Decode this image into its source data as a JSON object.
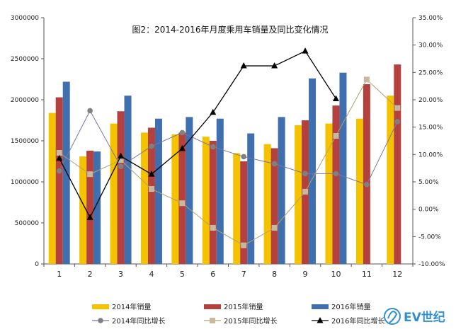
{
  "chart_data": {
    "type": "bar+line",
    "title": "图2：2014-2016年月度乘用车销量及同比变化情况",
    "categories": [
      "1",
      "2",
      "3",
      "4",
      "5",
      "6",
      "7",
      "8",
      "9",
      "10",
      "11",
      "12"
    ],
    "y_left": {
      "min": 0,
      "max": 3000000,
      "step": 500000,
      "ticks": [
        "0",
        "500000",
        "1000000",
        "1500000",
        "2000000",
        "2500000",
        "3000000"
      ]
    },
    "y_right": {
      "min": -10,
      "max": 35,
      "step": 5,
      "ticks": [
        "-10.00%",
        "-5.00%",
        "0.00%",
        "5.00%",
        "10.00%",
        "15.00%",
        "20.00%",
        "25.00%",
        "30.00%",
        "35.00%"
      ]
    },
    "bar_series": [
      {
        "name": "2014年销量",
        "color": "#F5C200",
        "values": [
          1840000,
          1310000,
          1710000,
          1600000,
          1580000,
          1550000,
          1350000,
          1460000,
          1690000,
          1710000,
          1770000,
          2050000
        ]
      },
      {
        "name": "2015年销量",
        "color": "#B5413E",
        "values": [
          2030000,
          1380000,
          1860000,
          1660000,
          1600000,
          1500000,
          1250000,
          1410000,
          1750000,
          1930000,
          2190000,
          2430000
        ]
      },
      {
        "name": "2016年销量",
        "color": "#3F6FAF",
        "values": [
          2220000,
          1370000,
          2050000,
          1770000,
          1790000,
          1770000,
          1590000,
          1790000,
          2260000,
          2330000,
          null,
          null
        ]
      }
    ],
    "line_series": [
      {
        "name": "2014年同比增长",
        "color": "#7777A3",
        "marker": "circle",
        "values": [
          7.0,
          18.0,
          7.8,
          11.5,
          14.0,
          11.4,
          9.6,
          8.3,
          6.5,
          6.5,
          4.5,
          16.0
        ]
      },
      {
        "name": "2015年同比增长",
        "color": "#B3A070",
        "marker": "square",
        "values": [
          10.3,
          6.4,
          9.0,
          3.7,
          1.1,
          -3.4,
          -6.6,
          -3.4,
          3.2,
          13.4,
          23.7,
          18.5
        ]
      },
      {
        "name": "2016年同比增长",
        "color": "#000000",
        "marker": "triangle",
        "values": [
          9.3,
          -1.5,
          9.7,
          6.4,
          11.1,
          17.7,
          26.2,
          26.2,
          28.9,
          20.2,
          null,
          null
        ]
      }
    ],
    "legend_position": "bottom",
    "grid": false
  },
  "branding": {
    "logo_text": "EV世纪"
  }
}
